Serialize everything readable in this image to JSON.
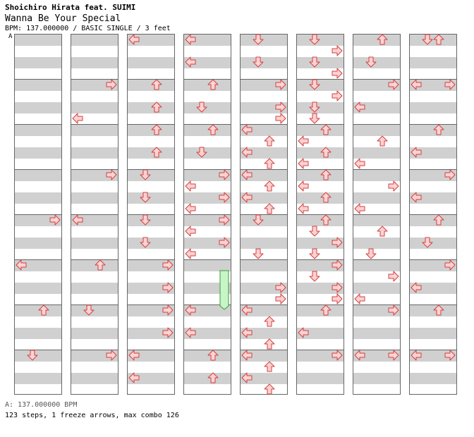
{
  "header": {
    "artist": "Shoichiro Hirata feat. SUIMI",
    "title": "Wanna Be Your Special",
    "info": "BPM: 137.000000 / BASIC SINGLE / 3 feet",
    "bpm_marker": "A"
  },
  "footer": {
    "bpm_legend": "A: 137.000000 BPM",
    "stats": "123 steps, 1 freeze arrows, max combo 126"
  },
  "colors": {
    "arrow_fill": "#ffd2d2",
    "arrow_stroke": "#d04040",
    "freeze_fill": "#c8f5c8",
    "freeze_stroke": "#3a9a3a",
    "band": "#d0d0d0",
    "measure_line": "#666666"
  },
  "chart_data": {
    "columns": [
      {
        "notes": [
          [
            "R",
            264
          ],
          [
            "L",
            328
          ],
          [
            "U",
            392
          ],
          [
            "D",
            456
          ]
        ]
      },
      {
        "notes": [
          [
            "R",
            72
          ],
          [
            "L",
            120
          ],
          [
            "R",
            200
          ],
          [
            "L",
            264
          ],
          [
            "U",
            328
          ],
          [
            "D",
            392
          ],
          [
            "R",
            456
          ]
        ]
      },
      {
        "notes": [
          [
            "L",
            8
          ],
          [
            "U",
            72
          ],
          [
            "U",
            104
          ],
          [
            "U",
            136
          ],
          [
            "U",
            168
          ],
          [
            "D",
            200
          ],
          [
            "D",
            232
          ],
          [
            "D",
            264
          ],
          [
            "D",
            296
          ],
          [
            "R",
            328
          ],
          [
            "R",
            360
          ],
          [
            "R",
            392
          ],
          [
            "R",
            424
          ],
          [
            "L",
            456
          ],
          [
            "L",
            488
          ]
        ]
      },
      {
        "notes": [
          [
            "L",
            8
          ],
          [
            "L",
            40
          ],
          [
            "U",
            72
          ],
          [
            "D",
            104
          ],
          [
            "U",
            136
          ],
          [
            "D",
            168
          ],
          [
            "R",
            200
          ],
          [
            "L",
            216
          ],
          [
            "R",
            232
          ],
          [
            "L",
            248
          ],
          [
            "R",
            264
          ],
          [
            "L",
            280
          ],
          [
            "R",
            296
          ],
          [
            "L",
            312
          ],
          [
            "L",
            392
          ],
          [
            "L",
            424
          ],
          [
            "U",
            456
          ],
          [
            "U",
            488
          ]
        ],
        "freezes": [
          [
            328,
            384
          ]
        ]
      },
      {
        "notes": [
          [
            "D",
            8
          ],
          [
            "D",
            40
          ],
          [
            "R",
            72
          ],
          [
            "R",
            104
          ],
          [
            "R",
            120
          ],
          [
            "L",
            136
          ],
          [
            "U",
            152
          ],
          [
            "L",
            168
          ],
          [
            "U",
            184
          ],
          [
            "L",
            200
          ],
          [
            "U",
            216
          ],
          [
            "L",
            232
          ],
          [
            "U",
            248
          ],
          [
            "D",
            264
          ],
          [
            "D",
            312
          ],
          [
            "R",
            360
          ],
          [
            "R",
            376
          ],
          [
            "L",
            392
          ],
          [
            "U",
            408
          ],
          [
            "L",
            424
          ],
          [
            "U",
            440
          ],
          [
            "L",
            456
          ],
          [
            "U",
            472
          ],
          [
            "L",
            488
          ],
          [
            "U",
            504
          ]
        ]
      },
      {
        "notes": [
          [
            "D",
            8
          ],
          [
            "R",
            24
          ],
          [
            "D",
            40
          ],
          [
            "R",
            56
          ],
          [
            "D",
            72
          ],
          [
            "R",
            88
          ],
          [
            "D",
            104
          ],
          [
            "D",
            120
          ],
          [
            "U",
            136
          ],
          [
            "L",
            152
          ],
          [
            "U",
            168
          ],
          [
            "L",
            184
          ],
          [
            "U",
            200
          ],
          [
            "L",
            216
          ],
          [
            "U",
            232
          ],
          [
            "L",
            248
          ],
          [
            "U",
            264
          ],
          [
            "D",
            280
          ],
          [
            "R",
            296
          ],
          [
            "D",
            312
          ],
          [
            "R",
            328
          ],
          [
            "D",
            344
          ],
          [
            "R",
            360
          ],
          [
            "R",
            376
          ],
          [
            "U",
            392
          ],
          [
            "L",
            424
          ],
          [
            "R",
            456
          ]
        ]
      },
      {
        "notes": [
          [
            "U",
            8
          ],
          [
            "D",
            40
          ],
          [
            "R",
            72
          ],
          [
            "L",
            104
          ],
          [
            "U",
            152
          ],
          [
            "L",
            184
          ],
          [
            "R",
            216
          ],
          [
            "L",
            248
          ],
          [
            "U",
            280
          ],
          [
            "D",
            312
          ],
          [
            "R",
            344
          ],
          [
            "L",
            376
          ],
          [
            "R",
            392
          ],
          [
            "L",
            456
          ],
          [
            "R",
            456
          ]
        ]
      },
      {
        "notes": [
          [
            "D",
            8
          ],
          [
            "U",
            8
          ],
          [
            "L",
            72
          ],
          [
            "R",
            72
          ],
          [
            "U",
            136
          ],
          [
            "L",
            168
          ],
          [
            "R",
            200
          ],
          [
            "L",
            232
          ],
          [
            "U",
            264
          ],
          [
            "D",
            296
          ],
          [
            "R",
            328
          ],
          [
            "L",
            360
          ],
          [
            "U",
            392
          ],
          [
            "L",
            456
          ],
          [
            "R",
            456
          ]
        ]
      }
    ]
  }
}
